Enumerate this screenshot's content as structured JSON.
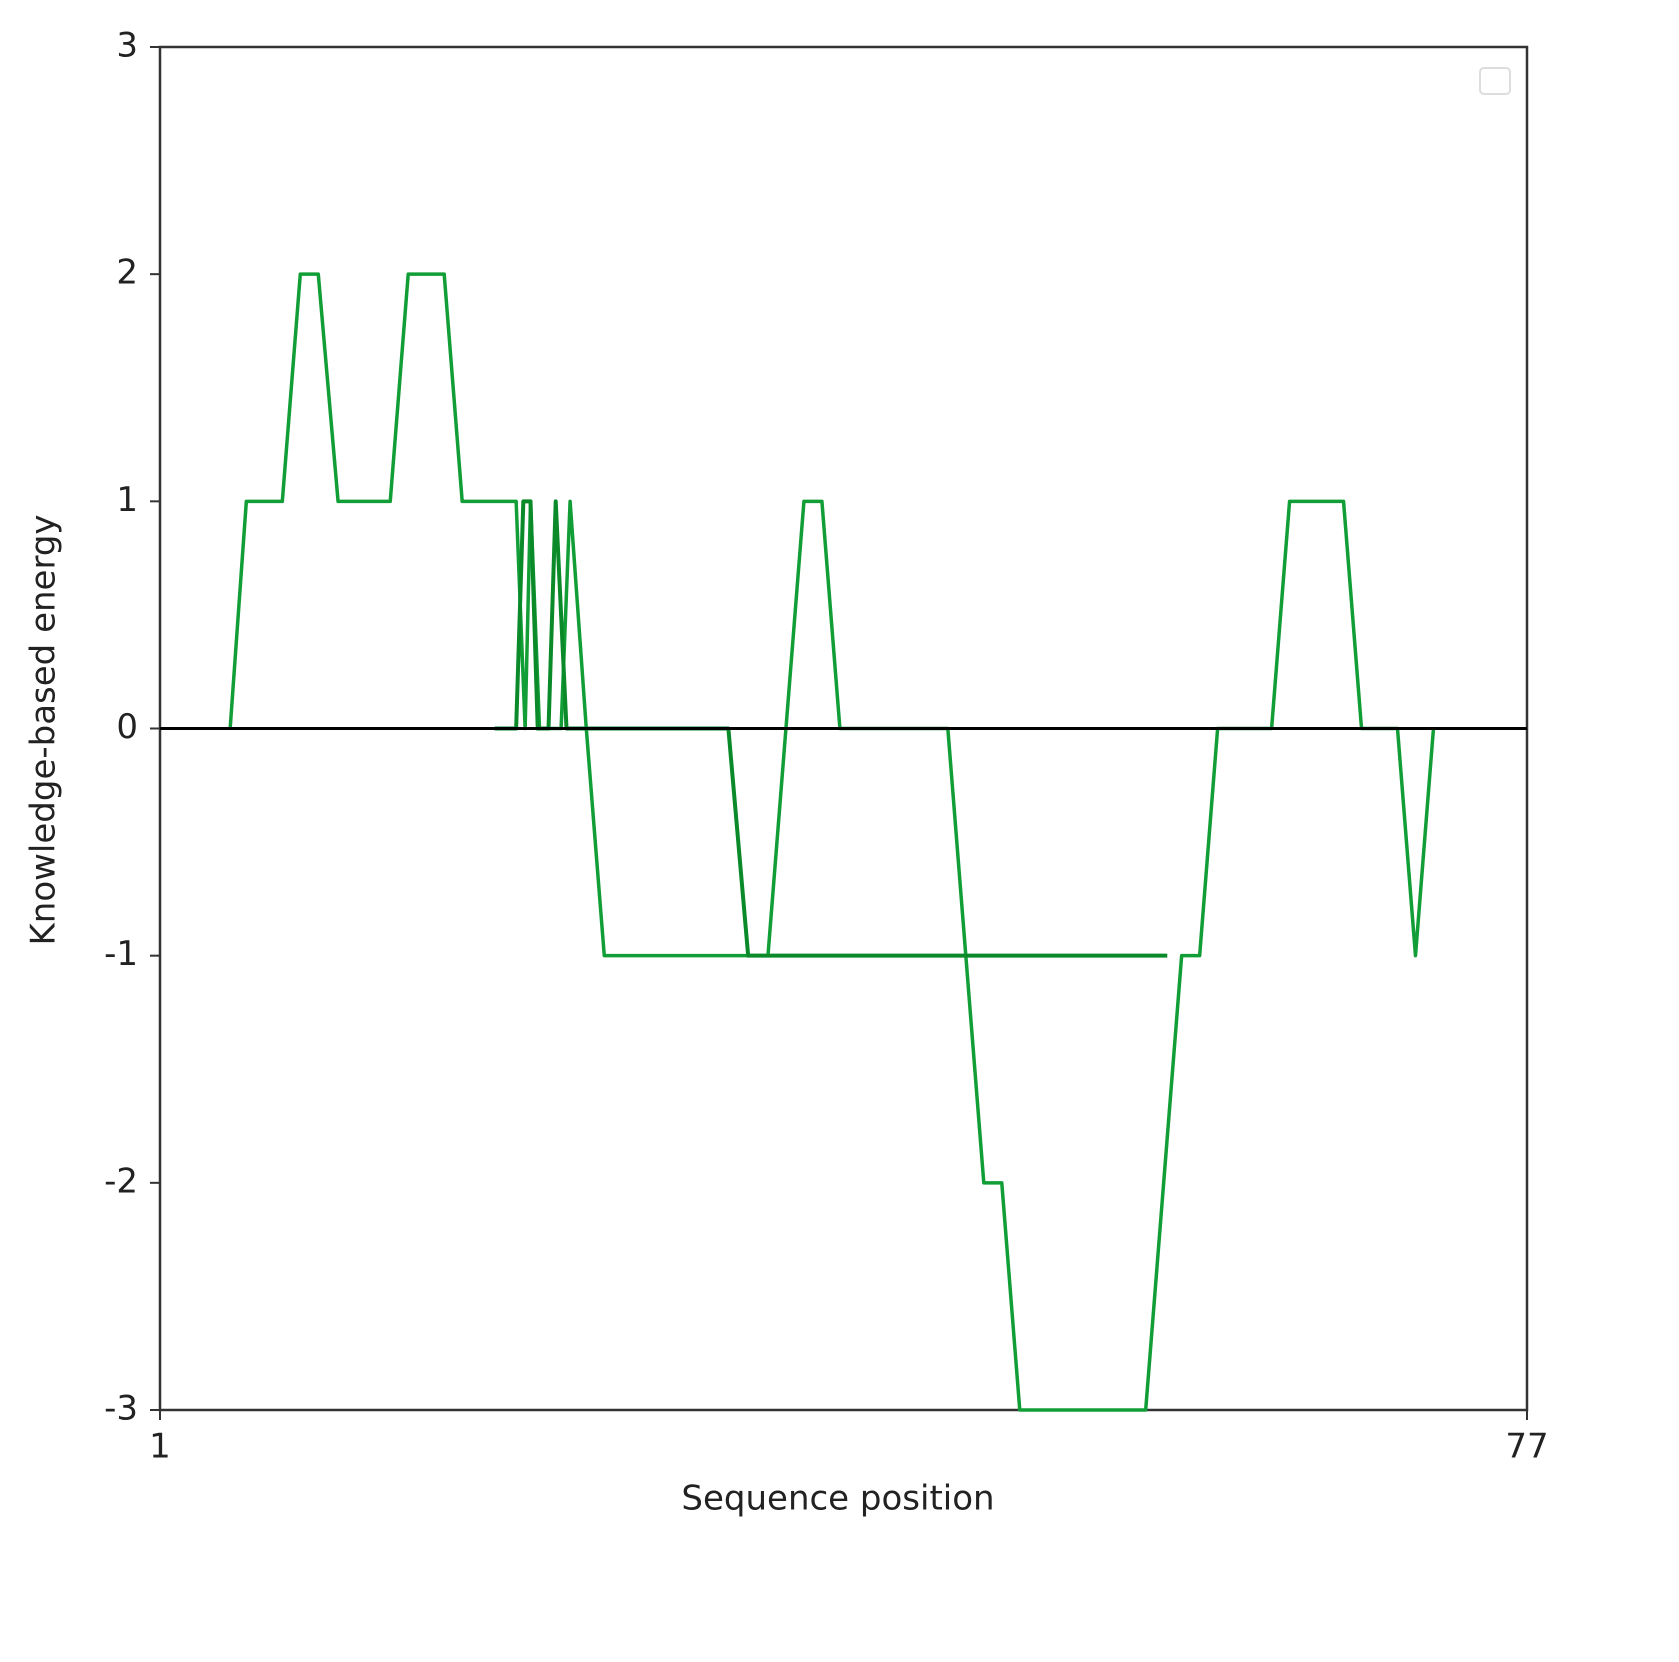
{
  "chart_data": {
    "type": "line",
    "xlabel": "Sequence position",
    "ylabel": "Knowledge-based energy",
    "xlim": [
      1,
      77
    ],
    "xticks": [
      1,
      77
    ],
    "ylim": [
      -3,
      3
    ],
    "yticks": [
      -3,
      -2,
      -1,
      0,
      1,
      2,
      3
    ],
    "hline": 0,
    "hline_color": "#000000",
    "series": [
      {
        "color": "#129e36",
        "x": [
          4.9,
          5.8,
          7.8,
          8.8,
          9.8,
          10.9,
          13.8,
          14.8,
          16.8,
          17.8,
          20.8,
          21.3,
          21.6,
          22.1,
          23.3,
          23.8,
          24.7,
          25.7,
          34.8,
          36.8,
          37.8,
          38.8,
          44.8,
          45.8,
          46.8,
          47.8,
          48.8,
          55.8,
          57.8,
          58.8,
          59.8,
          62.8,
          63.8,
          66.8,
          67.8,
          69.8,
          70.8,
          71.8
        ],
        "values": [
          0,
          1,
          1,
          2,
          2,
          1,
          1,
          2,
          2,
          1,
          1,
          0,
          1,
          0,
          0,
          1,
          0,
          -1,
          -1,
          1,
          1,
          0,
          0,
          -1,
          -2,
          -2,
          -3,
          -3,
          -1,
          -1,
          0,
          0,
          1,
          1,
          0,
          0,
          -1,
          0
        ]
      },
      {
        "color": "#0b8a2a",
        "x": [
          19.6,
          20.8,
          21.2,
          21.6,
          22.0,
          22.6,
          23.0,
          23.6,
          24.2,
          32.6,
          33.7,
          34.5,
          57.0
        ],
        "values": [
          0,
          0,
          1,
          1,
          0,
          0,
          1,
          0,
          0,
          0,
          -1,
          -1,
          -1
        ]
      }
    ]
  }
}
